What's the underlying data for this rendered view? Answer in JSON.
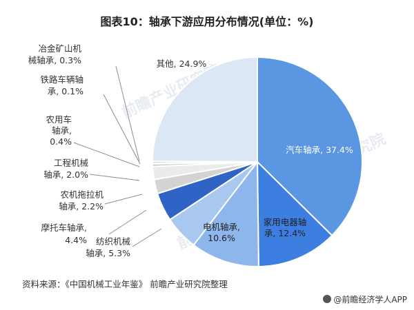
{
  "title": "图表10：轴承下游应用分布情况(单位：%)",
  "source": "资料来源：《中国机械工业年鉴》 前瞻产业研究院整理",
  "brand": "@前瞻经济学人APP",
  "watermark": "前瞻产业研究院",
  "chart_data": {
    "type": "pie",
    "title": "图表10：轴承下游应用分布情况(单位：%)",
    "unit": "%",
    "slices": [
      {
        "name": "汽车轴承",
        "value": 37.4,
        "color": "#5b96e3",
        "label_lines": [
          "汽车轴承, 37.4%"
        ]
      },
      {
        "name": "家用电器轴承",
        "value": 12.4,
        "color": "#3c7fe0",
        "label_lines": [
          "家用电器轴",
          "承, 12.4%"
        ]
      },
      {
        "name": "电机轴承",
        "value": 10.6,
        "color": "#8db6ec",
        "label_lines": [
          "电机轴承,",
          "10.6%"
        ]
      },
      {
        "name": "纺织机械轴承",
        "value": 5.3,
        "color": "#a9c8ef",
        "label_lines": [
          "纺织机械",
          "轴承, 5.3%"
        ]
      },
      {
        "name": "摩托车轴承",
        "value": 4.4,
        "color": "#2f64c6",
        "label_lines": [
          "摩托车轴承,",
          "4.4%"
        ]
      },
      {
        "name": "农机拖拉机轴承",
        "value": 2.2,
        "color": "#d3d3d3",
        "label_lines": [
          "农机拖拉机",
          "轴承, 2.2%"
        ]
      },
      {
        "name": "工程机械轴承",
        "value": 2.0,
        "color": "#ebebeb",
        "label_lines": [
          "工程机械",
          "轴承, 2.0%"
        ]
      },
      {
        "name": "农用车轴承",
        "value": 0.4,
        "color": "#c4c4c4",
        "label_lines": [
          "农用车",
          "轴承,",
          "0.4%"
        ]
      },
      {
        "name": "铁路车辆轴承",
        "value": 0.1,
        "color": "#b0b0b0",
        "label_lines": [
          "铁路车辆轴",
          "承, 0.1%"
        ]
      },
      {
        "name": "冶金矿山机械轴承",
        "value": 0.3,
        "color": "#c0c0c0",
        "label_lines": [
          "冶金矿山机",
          "械轴承, 0.3%"
        ]
      },
      {
        "name": "其他",
        "value": 24.9,
        "color": "#dbe7f5",
        "label_lines": [
          "其他, 24.9%"
        ]
      }
    ]
  }
}
